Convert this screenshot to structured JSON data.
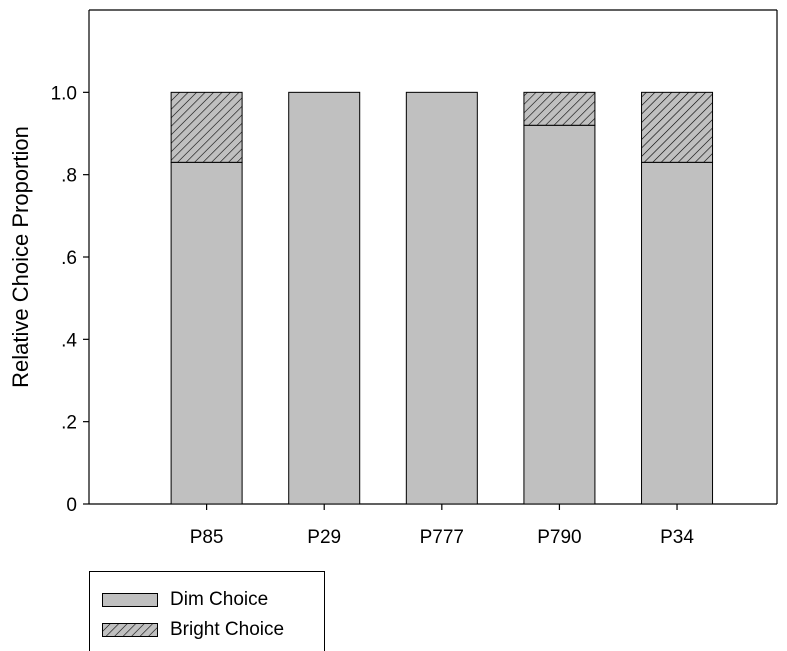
{
  "chart_data": {
    "type": "bar",
    "stacked": true,
    "categories": [
      "P85",
      "P29",
      "P777",
      "P790",
      "P34"
    ],
    "series": [
      {
        "name": "Dim Choice",
        "values": [
          0.83,
          1.0,
          1.0,
          0.92,
          0.83
        ],
        "color": "#c0c0c0",
        "pattern": "solid"
      },
      {
        "name": "Bright Choice",
        "values": [
          0.17,
          0.0,
          0.0,
          0.08,
          0.17
        ],
        "color": "#c0c0c0",
        "pattern": "diagonal-hatch"
      }
    ],
    "ylabel": "Relative Choice Proportion",
    "xlabel": "",
    "ylim": [
      0,
      1.2
    ],
    "yticks": [
      0,
      0.2,
      0.4,
      0.6,
      0.8,
      1.0
    ],
    "ytick_labels": [
      "0",
      ".2",
      ".4",
      ".6",
      ".8",
      "1.0"
    ],
    "grid": false,
    "legend_position": "bottom-left"
  },
  "legend": {
    "dim_label": "Dim Choice",
    "bright_label": "Bright Choice"
  }
}
